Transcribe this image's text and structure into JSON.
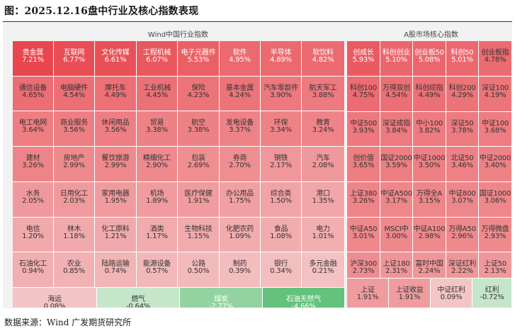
{
  "title": "图：2025.12.16盘中行业及核心指数表现",
  "source": "数据来源：Wind  广发期货研究所",
  "chart_data": [
    {
      "type": "heatmap",
      "title": "Wind中国行业指数",
      "unit": "%",
      "cells": [
        {
          "name": "贵金属",
          "value": 7.21
        },
        {
          "name": "互联网",
          "value": 6.77
        },
        {
          "name": "文化传媒",
          "value": 6.61
        },
        {
          "name": "工程机械",
          "value": 6.07
        },
        {
          "name": "电子元器件",
          "value": 5.53
        },
        {
          "name": "软件",
          "value": 4.95
        },
        {
          "name": "半导体",
          "value": 4.89
        },
        {
          "name": "软饮料",
          "value": 4.82
        },
        {
          "name": "通信设备",
          "value": 4.65
        },
        {
          "name": "电脑硬件",
          "value": 4.54
        },
        {
          "name": "摩托车",
          "value": 4.49
        },
        {
          "name": "工业机械",
          "value": 4.45
        },
        {
          "name": "保险",
          "value": 4.23
        },
        {
          "name": "基本金属",
          "value": 4.24
        },
        {
          "name": "汽车零部件",
          "value": 3.9
        },
        {
          "name": "航天军工",
          "value": 3.88
        },
        {
          "name": "电工电网",
          "value": 3.64
        },
        {
          "name": "商业服务",
          "value": 3.56
        },
        {
          "name": "休闲用品",
          "value": 3.56
        },
        {
          "name": "贸易",
          "value": 3.38
        },
        {
          "name": "航空",
          "value": 3.38
        },
        {
          "name": "发电设备",
          "value": 3.37
        },
        {
          "name": "环保",
          "value": 3.34
        },
        {
          "name": "教育",
          "value": 3.24
        },
        {
          "name": "建材",
          "value": 3.26
        },
        {
          "name": "房地产",
          "value": 2.99
        },
        {
          "name": "餐饮旅游",
          "value": 2.99
        },
        {
          "name": "精细化工",
          "value": 2.9
        },
        {
          "name": "包装",
          "value": 2.69
        },
        {
          "name": "券商",
          "value": 2.7
        },
        {
          "name": "钢铁",
          "value": 2.17
        },
        {
          "name": "汽车",
          "value": 2.08
        },
        {
          "name": "水务",
          "value": 2.05
        },
        {
          "name": "日用化工",
          "value": 2.03
        },
        {
          "name": "家用电器",
          "value": 1.95
        },
        {
          "name": "机场",
          "value": 1.89
        },
        {
          "name": "医疗保健",
          "value": 1.91
        },
        {
          "name": "办公用品",
          "value": 1.75
        },
        {
          "name": "综合类",
          "value": 1.5
        },
        {
          "name": "港口",
          "value": 1.35
        },
        {
          "name": "电信",
          "value": 1.2
        },
        {
          "name": "林木",
          "value": 1.18
        },
        {
          "name": "化工原料",
          "value": 1.21
        },
        {
          "name": "酒类",
          "value": 1.17
        },
        {
          "name": "生物科技",
          "value": 1.15
        },
        {
          "name": "化肥农药",
          "value": 1.09
        },
        {
          "name": "食品",
          "value": 1.08
        },
        {
          "name": "电力",
          "value": 1.01
        },
        {
          "name": "石油化工",
          "value": 0.94
        },
        {
          "name": "农业",
          "value": 0.85
        },
        {
          "name": "陆路运输",
          "value": 0.74
        },
        {
          "name": "能源设备",
          "value": 0.57
        },
        {
          "name": "公路",
          "value": 0.5
        },
        {
          "name": "制药",
          "value": 0.39
        },
        {
          "name": "银行",
          "value": 0.34
        },
        {
          "name": "多元金融",
          "value": 0.21
        },
        {
          "name": "海运",
          "value": 0.08
        },
        {
          "name": "燃气",
          "value": -0.64
        },
        {
          "name": "煤炭",
          "value": -2.77
        },
        {
          "name": "石油天然气",
          "value": -4.66
        }
      ]
    },
    {
      "type": "heatmap",
      "title": "A股市场核心指数",
      "unit": "%",
      "cells": [
        {
          "name": "创成长",
          "value": 5.93
        },
        {
          "name": "科创创业",
          "value": 5.1
        },
        {
          "name": "创业板50",
          "value": 5.08
        },
        {
          "name": "科创50",
          "value": 5.01
        },
        {
          "name": "创业板指",
          "value": 4.78
        },
        {
          "name": "科创100",
          "value": 4.75
        },
        {
          "name": "万得双创",
          "value": 4.54
        },
        {
          "name": "科创综指",
          "value": 4.49
        },
        {
          "name": "科创200",
          "value": 4.29
        },
        {
          "name": "深证100",
          "value": 4.19
        },
        {
          "name": "中证500",
          "value": 3.93
        },
        {
          "name": "深证成指",
          "value": 3.84
        },
        {
          "name": "中小100",
          "value": 3.82
        },
        {
          "name": "深证50",
          "value": 3.78
        },
        {
          "name": "中证100",
          "value": 3.68
        },
        {
          "name": "创价值",
          "value": 3.65
        },
        {
          "name": "国证2000",
          "value": 3.59
        },
        {
          "name": "中证1000",
          "value": 3.5
        },
        {
          "name": "北证50",
          "value": 3.46
        },
        {
          "name": "中证2000",
          "value": 3.4
        },
        {
          "name": "上证380",
          "value": 3.26
        },
        {
          "name": "中证A500",
          "value": 3.17
        },
        {
          "name": "万得全A",
          "value": 3.15
        },
        {
          "name": "中证800",
          "value": 3.07
        },
        {
          "name": "国证1000",
          "value": 3.06
        },
        {
          "name": "中证A50",
          "value": 3.01
        },
        {
          "name": "MSCI中",
          "value": 3.0
        },
        {
          "name": "中证A100",
          "value": 2.98
        },
        {
          "name": "万得A50",
          "value": 2.96
        },
        {
          "name": "万得微盘",
          "value": 2.93
        },
        {
          "name": "沪深300",
          "value": 2.73
        },
        {
          "name": "上证180",
          "value": 2.31
        },
        {
          "name": "富时中国",
          "value": 2.24
        },
        {
          "name": "深证红利",
          "value": 2.22
        },
        {
          "name": "上证50",
          "value": 2.13
        },
        {
          "name": "上证",
          "value": 1.91
        },
        {
          "name": "上证收益",
          "value": 1.91
        },
        {
          "name": "中证红利",
          "value": 0.09
        },
        {
          "name": "红利",
          "value": -0.72
        }
      ]
    }
  ]
}
